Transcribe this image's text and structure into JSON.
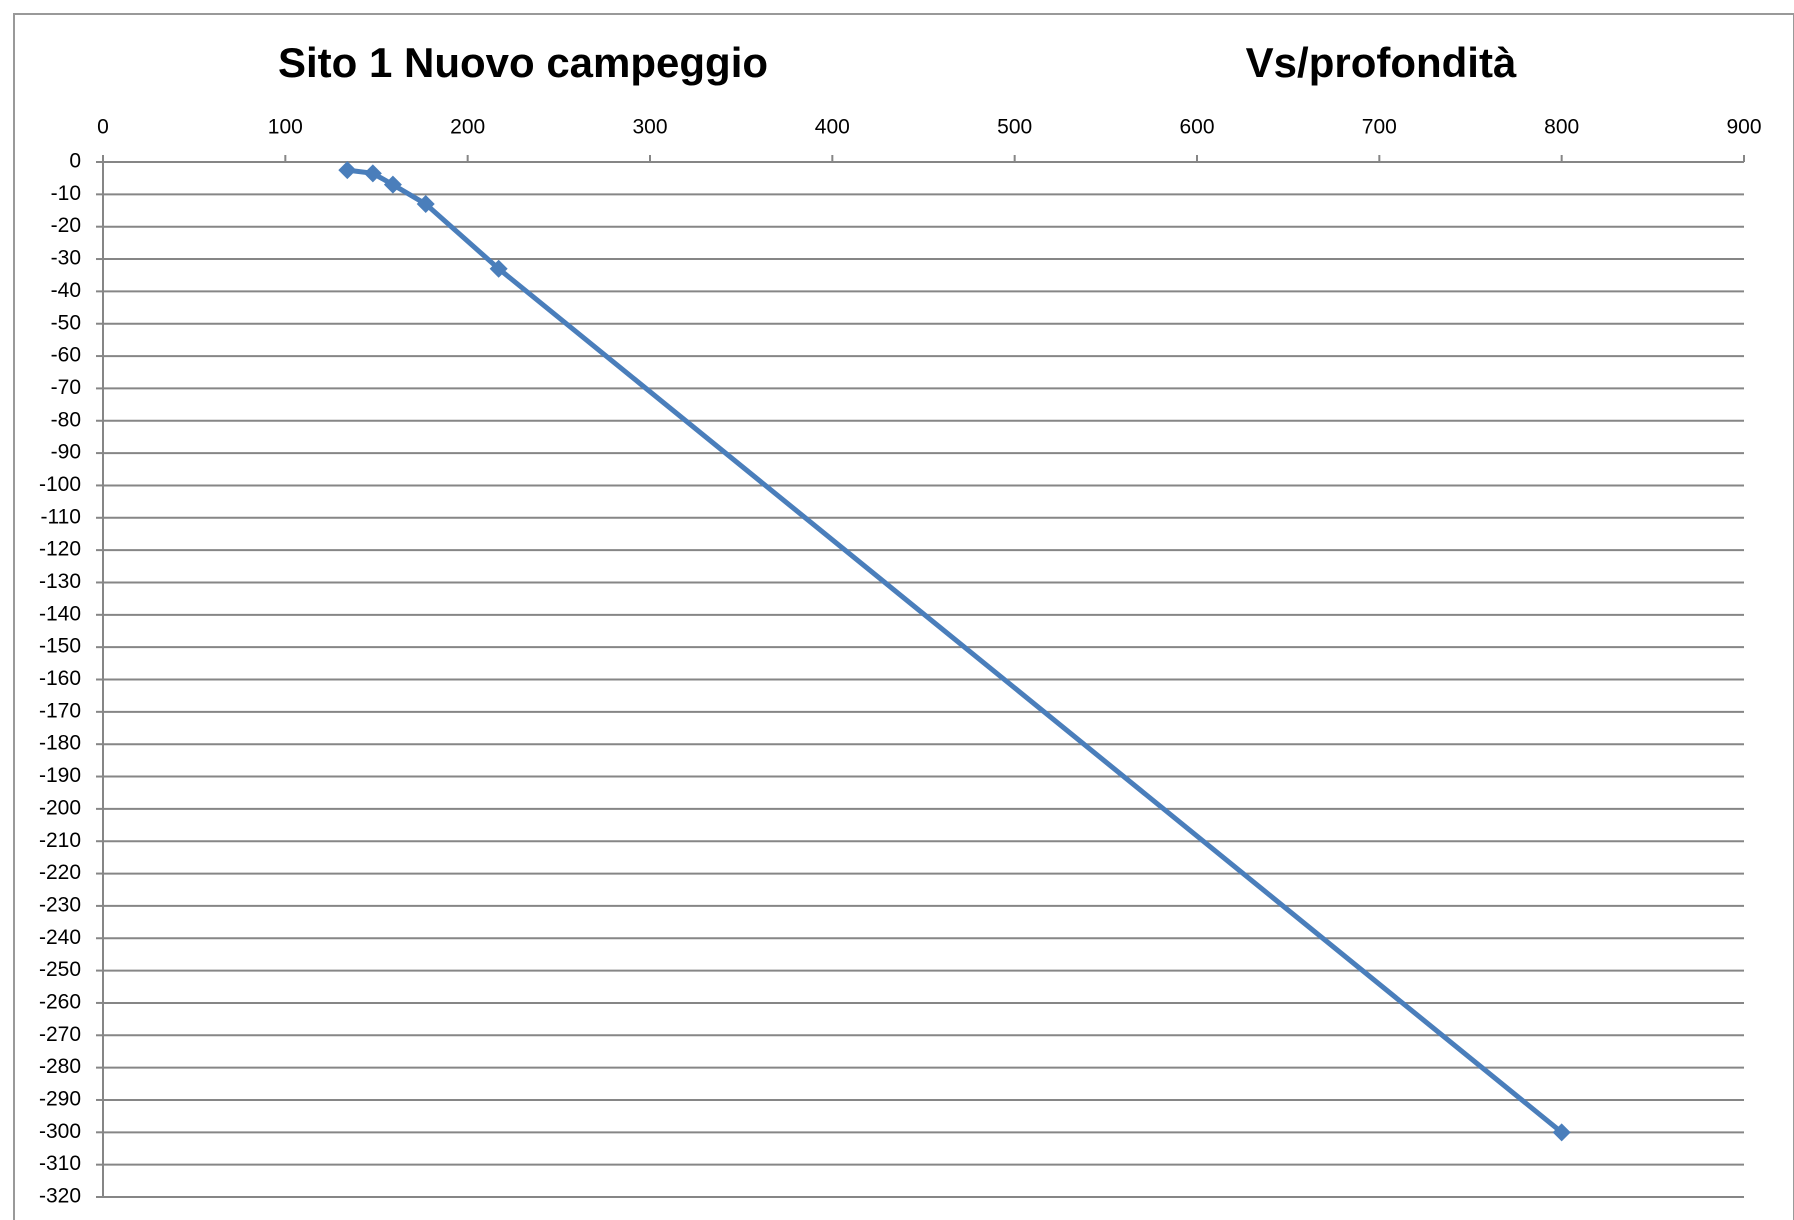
{
  "chart_data": {
    "type": "line",
    "title": "Sito 1 Nuovo campeggio",
    "subtitle": "Vs/profondità",
    "x": [
      134,
      148,
      159,
      177,
      217,
      800
    ],
    "series": [
      {
        "color": "#4a7ebb",
        "values": [
          -2.5,
          -3.5,
          -7,
          -13,
          -33,
          -300
        ]
      }
    ],
    "xlim": [
      0,
      900
    ],
    "xticks": [
      0,
      100,
      200,
      300,
      400,
      500,
      600,
      700,
      800,
      900
    ],
    "ylim": [
      -320,
      0
    ],
    "yticks": [
      0,
      -10,
      -20,
      -30,
      -40,
      -50,
      -60,
      -70,
      -80,
      -90,
      -100,
      -110,
      -120,
      -130,
      -140,
      -150,
      -160,
      -170,
      -180,
      -190,
      -200,
      -210,
      -220,
      -230,
      -240,
      -250,
      -260,
      -270,
      -280,
      -290,
      -300,
      -310,
      -320
    ],
    "grid": true,
    "x_axis_position": "top"
  }
}
